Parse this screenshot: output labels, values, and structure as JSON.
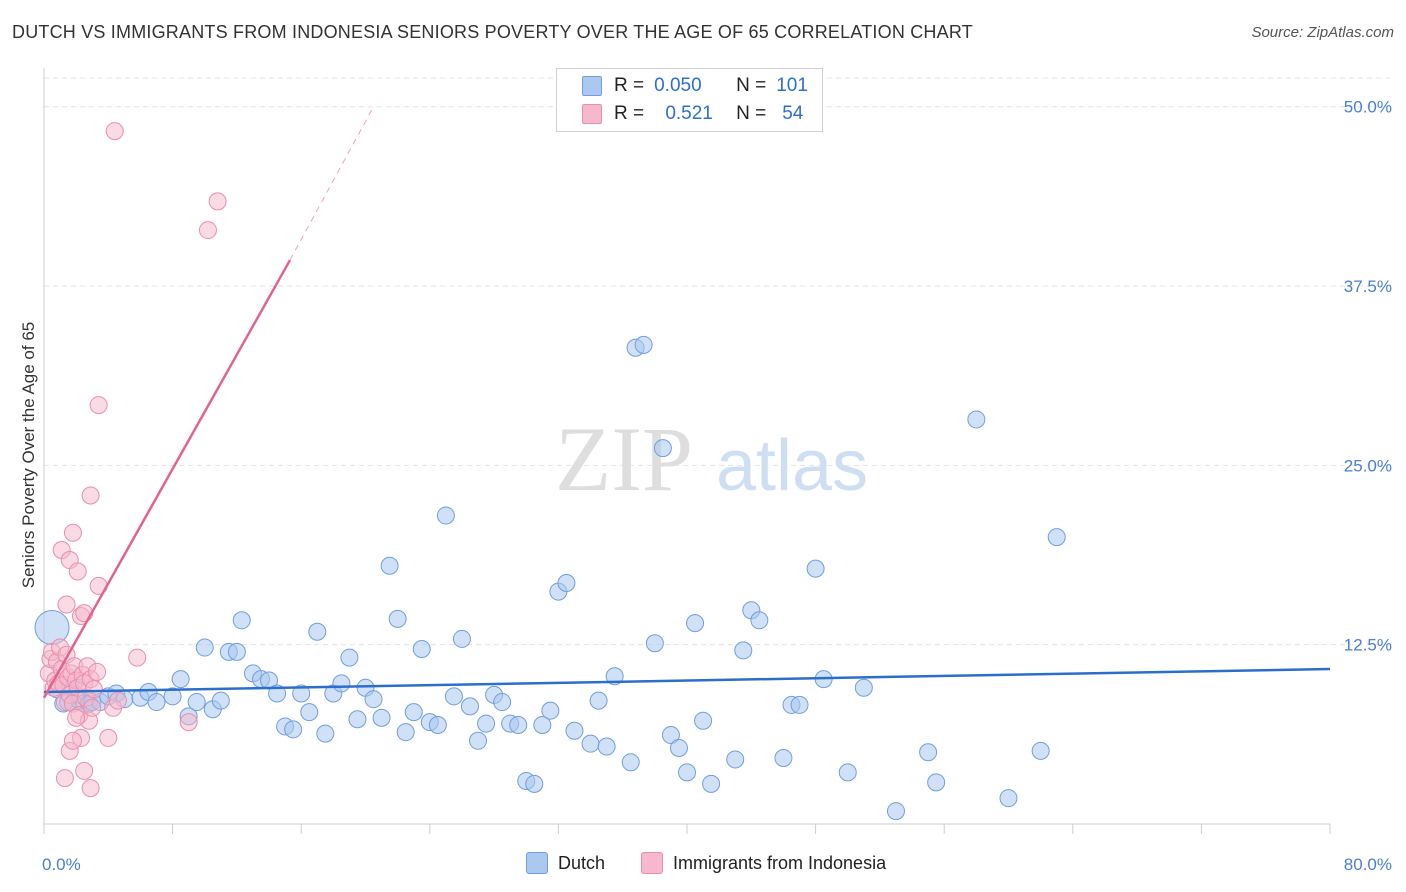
{
  "header": {
    "title": "DUTCH VS IMMIGRANTS FROM INDONESIA SENIORS POVERTY OVER THE AGE OF 65 CORRELATION CHART",
    "source": "Source: ZipAtlas.com"
  },
  "watermark": {
    "zip": "ZIP",
    "atlas": "atlas"
  },
  "legend": {
    "rows": [
      {
        "r_label": "R =",
        "r_value": "0.050",
        "n_label": "N =",
        "n_value": "101",
        "color": "#aac8f0"
      },
      {
        "r_label": "R =",
        "r_value": "0.521",
        "n_label": "N =",
        "n_value": "54",
        "color": "#f6b8cc"
      }
    ]
  },
  "bottom_legend": {
    "series1": "Dutch",
    "series2": "Immigrants from Indonesia"
  },
  "colors": {
    "dutch_fill": "#aac8f0",
    "dutch_stroke": "#6f9fdc",
    "dutch_line": "#2c6fcb",
    "indo_fill": "#f6b8cc",
    "indo_stroke": "#ea8eac",
    "indo_line": "#e4628f",
    "grid": "#e3e3e3",
    "axis_text": "#4a7fd4"
  },
  "chart_data": {
    "type": "scatter",
    "title": "DUTCH VS IMMIGRANTS FROM INDONESIA SENIORS POVERTY OVER THE AGE OF 65 CORRELATION CHART",
    "xlabel": "",
    "ylabel": "Seniors Poverty Over the Age of 65",
    "xlim": [
      0,
      80
    ],
    "ylim": [
      0,
      52
    ],
    "x_tick_labels": [
      "0.0%",
      "80.0%"
    ],
    "y_ticks": [
      12.5,
      25.0,
      37.5,
      50.0
    ],
    "y_tick_labels": [
      "12.5%",
      "25.0%",
      "37.5%",
      "50.0%"
    ],
    "grid": true,
    "legend_position": "top-center",
    "series": [
      {
        "name": "Dutch",
        "points": [
          [
            0.5,
            13.7
          ],
          [
            0.8,
            9.4
          ],
          [
            1.2,
            8.4
          ],
          [
            1.5,
            8.5
          ],
          [
            1.8,
            9.6
          ],
          [
            2.0,
            9.0
          ],
          [
            2.2,
            8.6
          ],
          [
            2.5,
            8.4
          ],
          [
            2.8,
            8.4
          ],
          [
            3.0,
            8.5
          ],
          [
            3.5,
            8.5
          ],
          [
            4.0,
            8.9
          ],
          [
            4.5,
            9.1
          ],
          [
            5.0,
            8.7
          ],
          [
            6.0,
            8.8
          ],
          [
            6.5,
            9.2
          ],
          [
            7.0,
            8.5
          ],
          [
            8.0,
            8.9
          ],
          [
            8.5,
            10.1
          ],
          [
            9.0,
            7.5
          ],
          [
            9.5,
            8.5
          ],
          [
            10.0,
            12.3
          ],
          [
            10.5,
            8.0
          ],
          [
            11.0,
            8.6
          ],
          [
            11.5,
            12.0
          ],
          [
            12.0,
            12.0
          ],
          [
            12.3,
            14.2
          ],
          [
            13.0,
            10.5
          ],
          [
            13.5,
            10.1
          ],
          [
            14.0,
            10.0
          ],
          [
            14.5,
            9.1
          ],
          [
            15.0,
            6.8
          ],
          [
            15.5,
            6.6
          ],
          [
            16.0,
            9.1
          ],
          [
            16.5,
            7.8
          ],
          [
            17.0,
            13.4
          ],
          [
            17.5,
            6.3
          ],
          [
            18.0,
            9.1
          ],
          [
            18.5,
            9.8
          ],
          [
            19.0,
            11.6
          ],
          [
            19.5,
            7.3
          ],
          [
            20.0,
            9.5
          ],
          [
            20.5,
            8.7
          ],
          [
            21.0,
            7.4
          ],
          [
            21.5,
            18.0
          ],
          [
            22.0,
            14.3
          ],
          [
            22.5,
            6.4
          ],
          [
            23.0,
            7.8
          ],
          [
            23.5,
            12.2
          ],
          [
            24.0,
            7.1
          ],
          [
            24.5,
            6.9
          ],
          [
            25.0,
            21.5
          ],
          [
            25.5,
            8.9
          ],
          [
            26.0,
            12.9
          ],
          [
            26.5,
            8.2
          ],
          [
            27.0,
            5.8
          ],
          [
            27.5,
            7.0
          ],
          [
            28.0,
            9.0
          ],
          [
            28.5,
            8.5
          ],
          [
            29.0,
            7.0
          ],
          [
            29.5,
            6.9
          ],
          [
            30.0,
            3.0
          ],
          [
            30.5,
            2.8
          ],
          [
            31.0,
            6.9
          ],
          [
            31.5,
            7.9
          ],
          [
            32.0,
            16.2
          ],
          [
            32.5,
            16.8
          ],
          [
            33.0,
            6.5
          ],
          [
            34.0,
            5.6
          ],
          [
            34.5,
            8.6
          ],
          [
            35.0,
            5.4
          ],
          [
            35.5,
            10.3
          ],
          [
            36.5,
            4.3
          ],
          [
            38.0,
            12.6
          ],
          [
            38.5,
            26.2
          ],
          [
            39.0,
            6.2
          ],
          [
            39.5,
            5.3
          ],
          [
            40.0,
            3.6
          ],
          [
            40.5,
            14.0
          ],
          [
            41.0,
            7.2
          ],
          [
            41.5,
            2.8
          ],
          [
            43.0,
            4.5
          ],
          [
            43.5,
            12.1
          ],
          [
            44.0,
            14.9
          ],
          [
            44.5,
            14.2
          ],
          [
            46.0,
            4.6
          ],
          [
            46.5,
            8.3
          ],
          [
            47.0,
            8.3
          ],
          [
            48.0,
            17.8
          ],
          [
            48.5,
            10.1
          ],
          [
            50.0,
            3.6
          ],
          [
            51.0,
            9.5
          ],
          [
            55.0,
            5.0
          ],
          [
            55.5,
            2.9
          ],
          [
            58.0,
            28.2
          ],
          [
            60.0,
            1.8
          ],
          [
            63.0,
            20.0
          ],
          [
            62.0,
            5.1
          ],
          [
            36.8,
            33.2
          ],
          [
            37.3,
            33.4
          ],
          [
            53.0,
            0.9
          ]
        ]
      },
      {
        "name": "Immigrants from Indonesia",
        "points": [
          [
            0.3,
            10.5
          ],
          [
            0.4,
            11.5
          ],
          [
            0.5,
            12.0
          ],
          [
            0.6,
            9.5
          ],
          [
            0.7,
            10.0
          ],
          [
            0.8,
            11.3
          ],
          [
            0.9,
            9.8
          ],
          [
            1.0,
            12.3
          ],
          [
            1.1,
            10.8
          ],
          [
            1.2,
            9.7
          ],
          [
            1.3,
            8.5
          ],
          [
            1.4,
            11.8
          ],
          [
            1.5,
            10.2
          ],
          [
            1.6,
            9.0
          ],
          [
            1.7,
            10.5
          ],
          [
            1.8,
            8.4
          ],
          [
            1.9,
            11.0
          ],
          [
            2.0,
            10.0
          ],
          [
            2.1,
            9.5
          ],
          [
            2.2,
            7.6
          ],
          [
            2.3,
            6.0
          ],
          [
            2.4,
            10.4
          ],
          [
            2.5,
            9.8
          ],
          [
            2.6,
            8.8
          ],
          [
            2.7,
            11.0
          ],
          [
            2.8,
            7.2
          ],
          [
            2.9,
            10.1
          ],
          [
            3.0,
            8.1
          ],
          [
            3.1,
            9.4
          ],
          [
            3.3,
            10.6
          ],
          [
            1.1,
            19.1
          ],
          [
            1.4,
            15.3
          ],
          [
            1.6,
            18.4
          ],
          [
            1.8,
            20.3
          ],
          [
            2.1,
            17.6
          ],
          [
            2.3,
            14.5
          ],
          [
            2.5,
            14.7
          ],
          [
            2.9,
            22.9
          ],
          [
            3.4,
            16.6
          ],
          [
            3.4,
            29.2
          ],
          [
            1.3,
            3.2
          ],
          [
            1.6,
            5.1
          ],
          [
            1.8,
            5.8
          ],
          [
            2.5,
            3.7
          ],
          [
            2.9,
            2.5
          ],
          [
            4.0,
            6.0
          ],
          [
            4.3,
            8.1
          ],
          [
            4.6,
            8.6
          ],
          [
            5.8,
            11.6
          ],
          [
            9.0,
            7.1
          ],
          [
            4.4,
            48.3
          ],
          [
            10.8,
            43.4
          ],
          [
            10.2,
            41.4
          ],
          [
            2.0,
            7.4
          ]
        ]
      }
    ],
    "trend_lines": [
      {
        "series": "Dutch",
        "x": [
          0,
          80
        ],
        "y": [
          9.2,
          10.8
        ]
      },
      {
        "series": "Immigrants from Indonesia",
        "x": [
          0,
          15.3
        ],
        "y": [
          8.8,
          39.3
        ],
        "dashed_x": [
          15.3,
          20.5
        ],
        "dashed_y": [
          39.3,
          50.0
        ]
      }
    ]
  }
}
